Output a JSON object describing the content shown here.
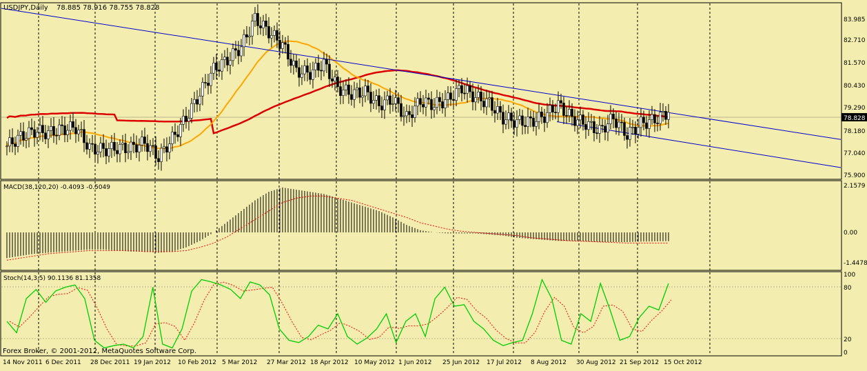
{
  "header": {
    "symbol_timeframe": "USDJPY,Daily",
    "ohlc": "78.885 78.916 78.755 78.828"
  },
  "colors": {
    "background": "#f3eeb0",
    "candle": "#000000",
    "ma_fast": "#ffa500",
    "ma_slow": "#dd0000",
    "channel": "#0000cc",
    "macd_signal": "#ff0000",
    "stoch_main": "#00cc00",
    "stoch_signal": "#ff0000"
  },
  "price_axis": {
    "ticks": [
      "83.985",
      "82.710",
      "81.570",
      "80.430",
      "79.290",
      "78.180",
      "77.040",
      "75.900"
    ],
    "current_price": "78.828"
  },
  "macd_panel": {
    "label": "MACD(38,120,20) -0.4093 -0.5049",
    "ticks": [
      "2.1579",
      "0.00",
      "-1.4478"
    ]
  },
  "stoch_panel": {
    "label": "Stoch(14,3,5) 90.1136 81.1358",
    "ticks": [
      "100",
      "80",
      "20",
      "0"
    ]
  },
  "date_axis": {
    "ticks": [
      "14 Nov 2011",
      "6 Dec 2011",
      "28 Dec 2011",
      "19 Jan 2012",
      "10 Feb 2012",
      "5 Mar 2012",
      "27 Mar 2012",
      "18 Apr 2012",
      "10 May 2012",
      "1 Jun 2012",
      "25 Jun 2012",
      "17 Jul 2012",
      "8 Aug 2012",
      "30 Aug 2012",
      "21 Sep 2012",
      "15 Oct 2012"
    ]
  },
  "footer": {
    "copyright": "Forex Broker, © 2001-2012, MetaQuotes Software Corp."
  },
  "chart_data": {
    "type": "candlestick",
    "symbol": "USDJPY",
    "timeframe": "Daily",
    "y_range": [
      75.3,
      84.5
    ],
    "weekly_close": [
      [
        "2011-11-14",
        77.0
      ],
      [
        "2011-11-21",
        77.5
      ],
      [
        "2011-11-28",
        77.8
      ],
      [
        "2011-12-05",
        77.7
      ],
      [
        "2011-12-12",
        77.9
      ],
      [
        "2011-12-19",
        78.0
      ],
      [
        "2011-12-26",
        76.9
      ],
      [
        "2012-01-02",
        76.8
      ],
      [
        "2012-01-09",
        76.9
      ],
      [
        "2012-01-16",
        76.9
      ],
      [
        "2012-01-23",
        77.2
      ],
      [
        "2012-01-30",
        76.4
      ],
      [
        "2012-02-06",
        77.4
      ],
      [
        "2012-02-13",
        78.5
      ],
      [
        "2012-02-20",
        79.8
      ],
      [
        "2012-02-27",
        81.1
      ],
      [
        "2012-03-05",
        81.6
      ],
      [
        "2012-03-12",
        82.3
      ],
      [
        "2012-03-19",
        83.8
      ],
      [
        "2012-03-26",
        83.1
      ],
      [
        "2012-04-02",
        82.4
      ],
      [
        "2012-04-09",
        81.0
      ],
      [
        "2012-04-16",
        80.9
      ],
      [
        "2012-04-23",
        81.4
      ],
      [
        "2012-04-30",
        80.1
      ],
      [
        "2012-05-07",
        79.8
      ],
      [
        "2012-05-14",
        79.9
      ],
      [
        "2012-05-21",
        79.2
      ],
      [
        "2012-05-28",
        79.5
      ],
      [
        "2012-06-04",
        78.5
      ],
      [
        "2012-06-11",
        79.4
      ],
      [
        "2012-06-18",
        79.2
      ],
      [
        "2012-06-25",
        79.5
      ],
      [
        "2012-07-02",
        80.1
      ],
      [
        "2012-07-09",
        79.6
      ],
      [
        "2012-07-16",
        79.3
      ],
      [
        "2012-07-23",
        78.5
      ],
      [
        "2012-07-30",
        78.3
      ],
      [
        "2012-08-06",
        78.3
      ],
      [
        "2012-08-13",
        78.6
      ],
      [
        "2012-08-20",
        79.2
      ],
      [
        "2012-08-27",
        78.5
      ],
      [
        "2012-09-03",
        78.2
      ],
      [
        "2012-09-10",
        77.8
      ],
      [
        "2012-09-17",
        78.5
      ],
      [
        "2012-09-24",
        77.6
      ],
      [
        "2012-10-01",
        78.2
      ],
      [
        "2012-10-08",
        78.4
      ],
      [
        "2012-10-15",
        78.8
      ]
    ],
    "indicators": [
      "moving average (orange)",
      "moving average (red)",
      "downward trend channel (blue)"
    ],
    "macd": {
      "params": "38,120,20",
      "main": -0.4093,
      "signal": -0.5049,
      "weekly_hist": [
        -1.2,
        -1.1,
        -1.0,
        -0.95,
        -0.9,
        -0.85,
        -0.8,
        -0.8,
        -0.85,
        -0.9,
        -0.9,
        -0.95,
        -0.9,
        -0.7,
        -0.4,
        0.0,
        0.5,
        1.0,
        1.5,
        1.9,
        2.1,
        2.0,
        1.9,
        1.8,
        1.6,
        1.4,
        1.2,
        1.0,
        0.7,
        0.35,
        0.1,
        0.0,
        -0.05,
        -0.05,
        -0.05,
        -0.1,
        -0.15,
        -0.25,
        -0.3,
        -0.35,
        -0.4,
        -0.4,
        -0.42,
        -0.45,
        -0.45,
        -0.45,
        -0.43,
        -0.42,
        -0.41
      ],
      "weekly_signal": [
        -1.3,
        -1.2,
        -1.1,
        -1.0,
        -0.95,
        -0.9,
        -0.85,
        -0.85,
        -0.85,
        -0.85,
        -0.9,
        -0.9,
        -0.9,
        -0.85,
        -0.7,
        -0.5,
        -0.2,
        0.2,
        0.6,
        1.0,
        1.4,
        1.6,
        1.7,
        1.7,
        1.6,
        1.5,
        1.3,
        1.1,
        0.9,
        0.7,
        0.45,
        0.3,
        0.15,
        0.05,
        0.0,
        -0.05,
        -0.1,
        -0.15,
        -0.25,
        -0.3,
        -0.35,
        -0.4,
        -0.42,
        -0.45,
        -0.47,
        -0.5,
        -0.5,
        -0.5,
        -0.5
      ]
    },
    "stochastic": {
      "params": "14,3,5",
      "main": 90.1136,
      "signal": 81.1358,
      "levels": [
        20,
        80
      ],
      "main_series": [
        40,
        25,
        70,
        82,
        65,
        80,
        85,
        88,
        70,
        15,
        5,
        8,
        10,
        5,
        20,
        85,
        10,
        5,
        30,
        80,
        95,
        92,
        88,
        82,
        70,
        92,
        88,
        75,
        30,
        15,
        12,
        20,
        35,
        30,
        50,
        20,
        10,
        18,
        30,
        50,
        12,
        40,
        50,
        20,
        70,
        85,
        60,
        62,
        40,
        30,
        15,
        8,
        12,
        15,
        50,
        95,
        70,
        15,
        10,
        50,
        40,
        90,
        55,
        15,
        20,
        45,
        60,
        55,
        90
      ]
    }
  }
}
